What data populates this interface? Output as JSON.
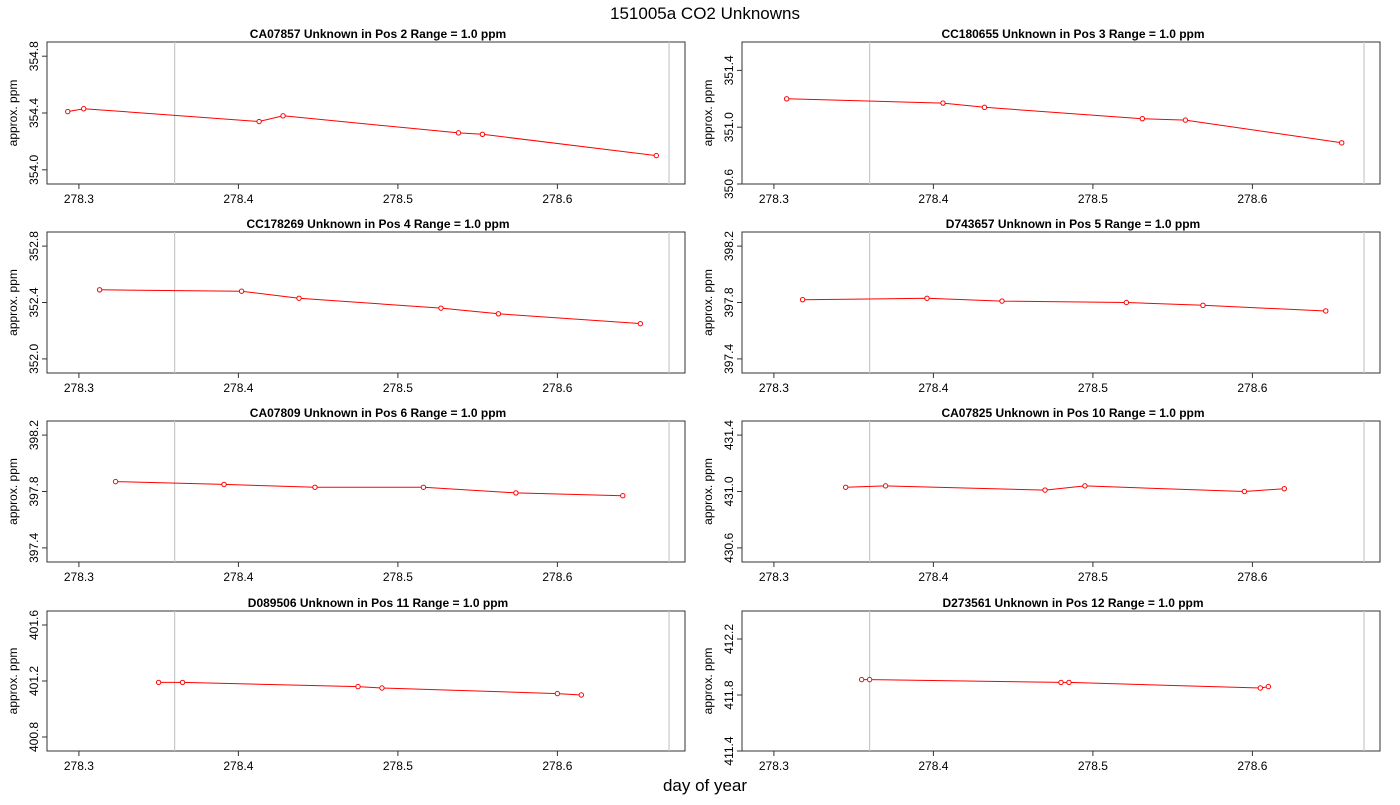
{
  "page": {
    "title": "151005a  CO2 Unknowns",
    "xlabel": "day of year"
  },
  "colors": {
    "series": "#ff0000",
    "vline": "#c8c8c8",
    "frame": "#333333"
  },
  "chart_data": [
    {
      "type": "line",
      "title": "CA07857    Unknown in Pos 2         Range = 1.0 ppm",
      "ylabel": "approx. ppm",
      "xlim": [
        278.28,
        278.68
      ],
      "ylim": [
        353.9,
        354.9
      ],
      "xticks": [
        "278.3",
        "278.4",
        "278.5",
        "278.6"
      ],
      "yticks": [
        "354.0",
        "354.4",
        "354.8"
      ],
      "vlines": [
        278.36,
        278.67
      ],
      "grid": false,
      "series": [
        {
          "x": [
            278.293,
            278.303,
            278.413,
            278.428,
            278.538,
            278.553,
            278.662
          ],
          "y": [
            354.41,
            354.43,
            354.34,
            354.38,
            354.26,
            354.25,
            354.1
          ]
        }
      ]
    },
    {
      "type": "line",
      "title": "CC180655    Unknown in Pos 3         Range = 1.0 ppm",
      "ylabel": "approx. ppm",
      "xlim": [
        278.28,
        278.68
      ],
      "ylim": [
        350.6,
        351.6
      ],
      "xticks": [
        "278.3",
        "278.4",
        "278.5",
        "278.6"
      ],
      "yticks": [
        "350.6",
        "351.0",
        "351.4"
      ],
      "vlines": [
        278.36,
        278.67
      ],
      "grid": false,
      "series": [
        {
          "x": [
            278.308,
            278.406,
            278.432,
            278.531,
            278.558,
            278.656
          ],
          "y": [
            351.2,
            351.17,
            351.14,
            351.06,
            351.05,
            350.89
          ]
        }
      ]
    },
    {
      "type": "line",
      "title": "CC178269    Unknown in Pos 4         Range = 1.0 ppm",
      "ylabel": "approx. ppm",
      "xlim": [
        278.28,
        278.68
      ],
      "ylim": [
        351.9,
        352.9
      ],
      "xticks": [
        "278.3",
        "278.4",
        "278.5",
        "278.6"
      ],
      "yticks": [
        "352.0",
        "352.4",
        "352.8"
      ],
      "vlines": [
        278.36,
        278.67
      ],
      "grid": false,
      "series": [
        {
          "x": [
            278.313,
            278.402,
            278.438,
            278.527,
            278.563,
            278.652
          ],
          "y": [
            352.49,
            352.48,
            352.43,
            352.36,
            352.32,
            352.25
          ]
        }
      ]
    },
    {
      "type": "line",
      "title": "D743657    Unknown in Pos 5         Range = 1.0 ppm",
      "ylabel": "approx. ppm",
      "xlim": [
        278.28,
        278.68
      ],
      "ylim": [
        397.3,
        398.3
      ],
      "xticks": [
        "278.3",
        "278.4",
        "278.5",
        "278.6"
      ],
      "yticks": [
        "397.4",
        "397.8",
        "398.2"
      ],
      "vlines": [
        278.36,
        278.67
      ],
      "grid": false,
      "series": [
        {
          "x": [
            278.318,
            278.396,
            278.443,
            278.521,
            278.569,
            278.646
          ],
          "y": [
            397.82,
            397.83,
            397.81,
            397.8,
            397.78,
            397.74
          ]
        }
      ]
    },
    {
      "type": "line",
      "title": "CA07809    Unknown in Pos 6         Range = 1.0 ppm",
      "ylabel": "approx. ppm",
      "xlim": [
        278.28,
        278.68
      ],
      "ylim": [
        397.3,
        398.3
      ],
      "xticks": [
        "278.3",
        "278.4",
        "278.5",
        "278.6"
      ],
      "yticks": [
        "397.4",
        "397.8",
        "398.2"
      ],
      "vlines": [
        278.36,
        278.67
      ],
      "grid": false,
      "series": [
        {
          "x": [
            278.323,
            278.391,
            278.448,
            278.516,
            278.574,
            278.641
          ],
          "y": [
            397.87,
            397.85,
            397.83,
            397.83,
            397.79,
            397.77
          ]
        }
      ]
    },
    {
      "type": "line",
      "title": "CA07825    Unknown in Pos 10         Range = 1.0 ppm",
      "ylabel": "approx. ppm",
      "xlim": [
        278.28,
        278.68
      ],
      "ylim": [
        430.5,
        431.5
      ],
      "xticks": [
        "278.3",
        "278.4",
        "278.5",
        "278.6"
      ],
      "yticks": [
        "430.6",
        "431.0",
        "431.4"
      ],
      "vlines": [
        278.36,
        278.67
      ],
      "grid": false,
      "series": [
        {
          "x": [
            278.345,
            278.37,
            278.47,
            278.495,
            278.595,
            278.62
          ],
          "y": [
            431.03,
            431.04,
            431.01,
            431.04,
            431.0,
            431.02
          ]
        }
      ]
    },
    {
      "type": "line",
      "title": "D089506    Unknown in Pos 11         Range = 1.0 ppm",
      "ylabel": "approx. ppm",
      "xlim": [
        278.28,
        278.68
      ],
      "ylim": [
        400.7,
        401.7
      ],
      "xticks": [
        "278.3",
        "278.4",
        "278.5",
        "278.6"
      ],
      "yticks": [
        "400.8",
        "401.2",
        "401.6"
      ],
      "vlines": [
        278.36,
        278.67
      ],
      "grid": false,
      "series": [
        {
          "x": [
            278.35,
            278.365,
            278.475,
            278.49,
            278.6,
            278.615
          ],
          "y": [
            401.19,
            401.19,
            401.16,
            401.15,
            401.11,
            401.1
          ]
        }
      ]
    },
    {
      "type": "line",
      "title": "D273561    Unknown in Pos 12         Range = 1.0 ppm",
      "ylabel": "approx. ppm",
      "xlim": [
        278.28,
        278.68
      ],
      "ylim": [
        411.4,
        412.4
      ],
      "xticks": [
        "278.3",
        "278.4",
        "278.5",
        "278.6"
      ],
      "yticks": [
        "411.4",
        "411.8",
        "412.2"
      ],
      "vlines": [
        278.36,
        278.67
      ],
      "grid": false,
      "series": [
        {
          "x": [
            278.355,
            278.36,
            278.48,
            278.485,
            278.605,
            278.61
          ],
          "y": [
            411.91,
            411.91,
            411.89,
            411.89,
            411.85,
            411.86
          ]
        }
      ]
    }
  ]
}
